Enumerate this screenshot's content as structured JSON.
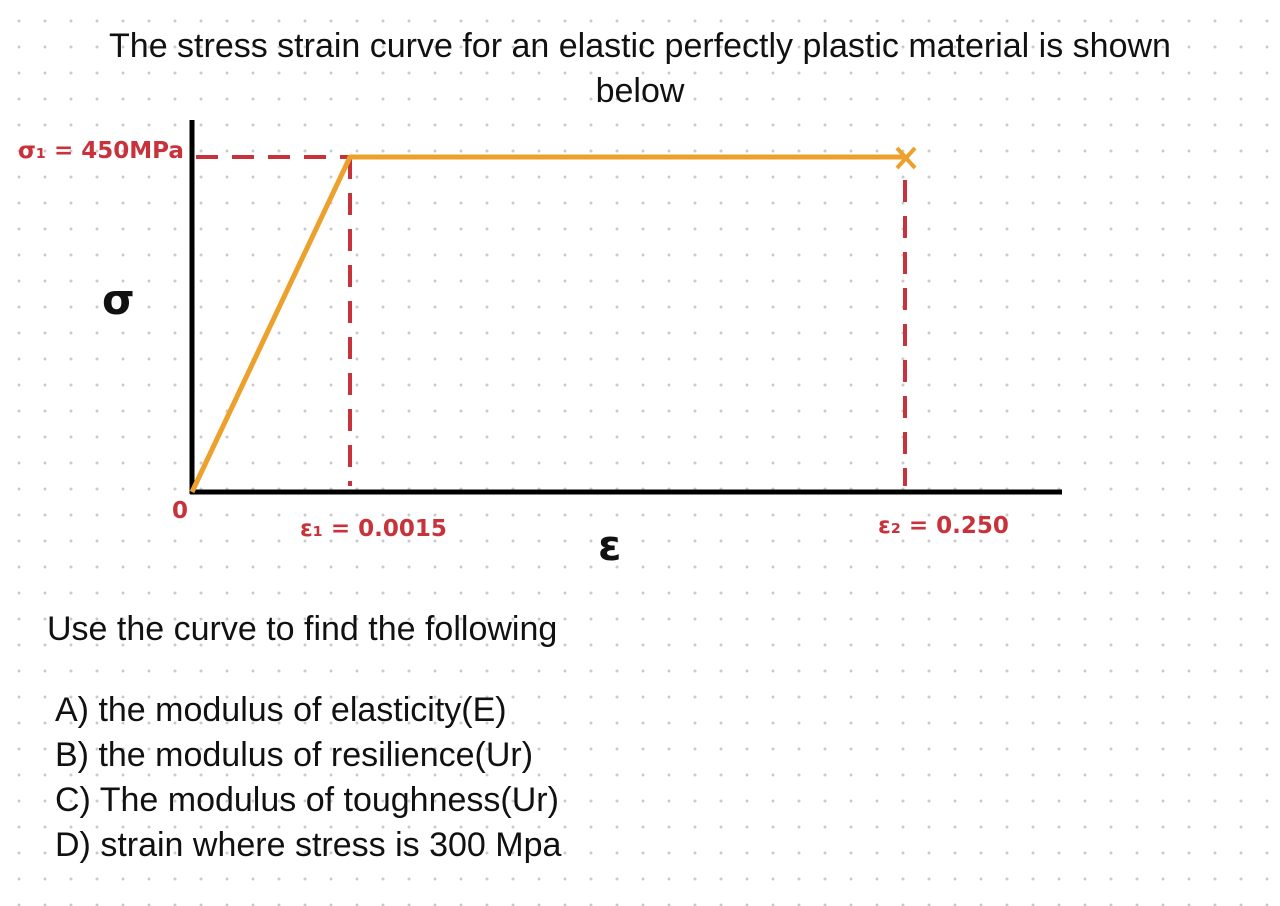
{
  "title": "The stress strain curve for an elastic perfectly plastic material is shown below",
  "diagram": {
    "stress_axis_label": "σ",
    "strain_axis_label": "ε",
    "origin_label": "0",
    "yield_stress_label": "σ₁ = 450MPa",
    "strain_1_label": "ε₁ = 0.0015",
    "strain_2_label": "ε₂ = 0.250"
  },
  "prompt": "Use the curve to find the following",
  "questions": [
    "A) the modulus of elasticity(E)",
    "B) the modulus of resilience(Ur)",
    "C) The modulus of toughness(Ur)",
    "D) strain where stress is 300 Mpa"
  ]
}
